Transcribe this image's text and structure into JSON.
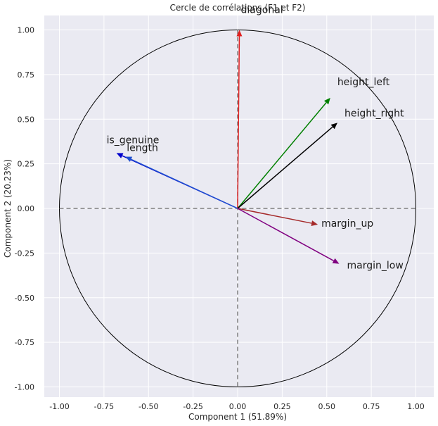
{
  "chart_data": {
    "type": "scatter",
    "subtype": "correlation-circle",
    "title": "Cercle de corrélations (F1 et F2)",
    "xlabel": "Component 1 (51.89%)",
    "ylabel": "Component 2 (20.23%)",
    "xlim": [
      -1.1,
      1.1
    ],
    "ylim": [
      -1.1,
      1.1
    ],
    "xticks": [
      "-1.00",
      "-0.75",
      "-0.50",
      "-0.25",
      "0.00",
      "0.25",
      "0.50",
      "0.75",
      "1.00"
    ],
    "yticks": [
      "1.00",
      "0.75",
      "0.50",
      "0.25",
      "0.00",
      "-0.25",
      "-0.50",
      "-0.75",
      "-1.00"
    ],
    "grid": true,
    "background": "#eaeaf2",
    "unit_circle": true,
    "vectors": [
      {
        "name": "diagonal",
        "x": 0.01,
        "y": 1.0,
        "color": "#e02020"
      },
      {
        "name": "height_left",
        "x": 0.52,
        "y": 0.62,
        "color": "#008000"
      },
      {
        "name": "height_right",
        "x": 0.56,
        "y": 0.48,
        "color": "#000000"
      },
      {
        "name": "is_genuine",
        "x": -0.68,
        "y": 0.31,
        "color": "#0000cc"
      },
      {
        "name": "length",
        "x": -0.63,
        "y": 0.29,
        "color": "#1f4fd0"
      },
      {
        "name": "margin_up",
        "x": 0.45,
        "y": -0.09,
        "color": "#a52a2a"
      },
      {
        "name": "margin_low",
        "x": 0.57,
        "y": -0.31,
        "color": "#800080"
      }
    ],
    "labels": [
      "diagonal",
      "height_left",
      "height_right",
      "is_genuine",
      "length",
      "margin_up",
      "margin_low"
    ]
  }
}
